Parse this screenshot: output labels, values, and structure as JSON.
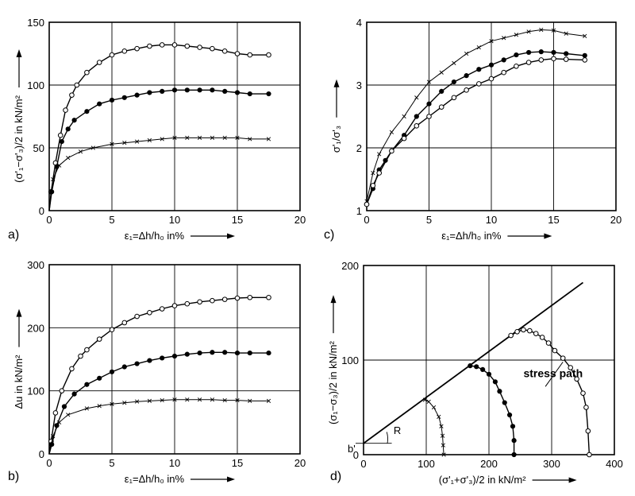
{
  "chart_data": [
    {
      "panel": "a",
      "type": "line",
      "xlabel": "ε₁=Δh/h₀ in%",
      "ylabel": "(σ'₁−σ'₃)/2 in kN/m²",
      "xlim": [
        0,
        20
      ],
      "ylim": [
        0,
        150
      ],
      "xticks": [
        0,
        5,
        10,
        15,
        20
      ],
      "yticks": [
        0,
        50,
        100,
        150
      ],
      "grid": true,
      "series": [
        {
          "marker": "open-circle",
          "points": [
            [
              0,
              0
            ],
            [
              0.15,
              15
            ],
            [
              0.5,
              38
            ],
            [
              0.9,
              60
            ],
            [
              1.3,
              80
            ],
            [
              1.8,
              92
            ],
            [
              2.2,
              100
            ],
            [
              3,
              110
            ],
            [
              4,
              118
            ],
            [
              5,
              124
            ],
            [
              6,
              127
            ],
            [
              7,
              129
            ],
            [
              8,
              131
            ],
            [
              9,
              132
            ],
            [
              10,
              132
            ],
            [
              11,
              131
            ],
            [
              12,
              130
            ],
            [
              13,
              129
            ],
            [
              14,
              127
            ],
            [
              15,
              125
            ],
            [
              16,
              124
            ],
            [
              17.5,
              124
            ]
          ]
        },
        {
          "marker": "filled-circle",
          "points": [
            [
              0,
              0
            ],
            [
              0.2,
              15
            ],
            [
              0.6,
              35
            ],
            [
              1,
              55
            ],
            [
              1.5,
              65
            ],
            [
              2,
              72
            ],
            [
              3,
              79
            ],
            [
              4,
              85
            ],
            [
              5,
              88
            ],
            [
              6,
              90
            ],
            [
              7,
              92
            ],
            [
              8,
              94
            ],
            [
              9,
              95
            ],
            [
              10,
              96
            ],
            [
              11,
              96
            ],
            [
              12,
              96
            ],
            [
              13,
              96
            ],
            [
              14,
              95
            ],
            [
              15,
              94
            ],
            [
              16,
              93
            ],
            [
              17.5,
              93
            ]
          ]
        },
        {
          "marker": "cross",
          "points": [
            [
              0,
              0
            ],
            [
              0.3,
              25
            ],
            [
              0.8,
              36
            ],
            [
              1.5,
              42
            ],
            [
              2.5,
              47
            ],
            [
              3.5,
              50
            ],
            [
              5,
              53
            ],
            [
              6,
              54
            ],
            [
              7,
              55
            ],
            [
              8,
              56
            ],
            [
              9,
              57
            ],
            [
              10,
              58
            ],
            [
              11,
              58
            ],
            [
              12,
              58
            ],
            [
              13,
              58
            ],
            [
              14,
              58
            ],
            [
              15,
              58
            ],
            [
              16,
              57
            ],
            [
              17.5,
              57
            ]
          ]
        }
      ]
    },
    {
      "panel": "b",
      "type": "line",
      "xlabel": "ε₁=Δh/h₀ in%",
      "ylabel": "Δu in kN/m²",
      "xlim": [
        0,
        20
      ],
      "ylim": [
        0,
        300
      ],
      "xticks": [
        0,
        5,
        10,
        15,
        20
      ],
      "yticks": [
        0,
        100,
        200,
        300
      ],
      "grid": true,
      "series": [
        {
          "marker": "open-circle",
          "points": [
            [
              0,
              0
            ],
            [
              0.15,
              20
            ],
            [
              0.5,
              65
            ],
            [
              1,
              100
            ],
            [
              1.8,
              135
            ],
            [
              2.5,
              155
            ],
            [
              3,
              165
            ],
            [
              4,
              182
            ],
            [
              5,
              197
            ],
            [
              6,
              208
            ],
            [
              7,
              218
            ],
            [
              8,
              224
            ],
            [
              9,
              230
            ],
            [
              10,
              235
            ],
            [
              11,
              238
            ],
            [
              12,
              241
            ],
            [
              13,
              243
            ],
            [
              14,
              245
            ],
            [
              15,
              247
            ],
            [
              16,
              248
            ],
            [
              17.5,
              248
            ]
          ]
        },
        {
          "marker": "filled-circle",
          "points": [
            [
              0,
              0
            ],
            [
              0.2,
              15
            ],
            [
              0.6,
              45
            ],
            [
              1.2,
              75
            ],
            [
              2,
              95
            ],
            [
              3,
              110
            ],
            [
              4,
              120
            ],
            [
              5,
              130
            ],
            [
              6,
              138
            ],
            [
              7,
              143
            ],
            [
              8,
              148
            ],
            [
              9,
              152
            ],
            [
              10,
              155
            ],
            [
              11,
              158
            ],
            [
              12,
              160
            ],
            [
              13,
              161
            ],
            [
              14,
              161
            ],
            [
              15,
              160
            ],
            [
              16,
              160
            ],
            [
              17.5,
              160
            ]
          ]
        },
        {
          "marker": "cross",
          "points": [
            [
              0,
              0
            ],
            [
              0.3,
              28
            ],
            [
              0.8,
              50
            ],
            [
              1.5,
              62
            ],
            [
              3,
              72
            ],
            [
              4,
              76
            ],
            [
              5,
              79
            ],
            [
              6,
              81
            ],
            [
              7,
              83
            ],
            [
              8,
              84
            ],
            [
              9,
              85
            ],
            [
              10,
              86
            ],
            [
              11,
              86
            ],
            [
              12,
              86
            ],
            [
              13,
              86
            ],
            [
              14,
              85
            ],
            [
              15,
              85
            ],
            [
              16,
              84
            ],
            [
              17.5,
              84
            ]
          ]
        }
      ]
    },
    {
      "panel": "c",
      "type": "line",
      "xlabel": "ε₁=Δh/h₀ in%",
      "ylabel": "σ'₁/σ'₃",
      "xlim": [
        0,
        20
      ],
      "ylim": [
        1,
        4
      ],
      "xticks": [
        0,
        5,
        10,
        15,
        20
      ],
      "yticks": [
        1,
        2,
        3,
        4
      ],
      "grid": true,
      "series": [
        {
          "marker": "cross",
          "points": [
            [
              0,
              1.15
            ],
            [
              0.5,
              1.6
            ],
            [
              1,
              1.9
            ],
            [
              2,
              2.25
            ],
            [
              3,
              2.5
            ],
            [
              4,
              2.8
            ],
            [
              5,
              3.05
            ],
            [
              6,
              3.2
            ],
            [
              7,
              3.35
            ],
            [
              8,
              3.5
            ],
            [
              9,
              3.6
            ],
            [
              10,
              3.7
            ],
            [
              11,
              3.75
            ],
            [
              12,
              3.8
            ],
            [
              13,
              3.85
            ],
            [
              14,
              3.88
            ],
            [
              15,
              3.87
            ],
            [
              16,
              3.82
            ],
            [
              17.5,
              3.78
            ]
          ]
        },
        {
          "marker": "filled-circle",
          "points": [
            [
              0,
              1.1
            ],
            [
              0.5,
              1.35
            ],
            [
              1,
              1.65
            ],
            [
              1.5,
              1.8
            ],
            [
              2,
              1.95
            ],
            [
              3,
              2.2
            ],
            [
              4,
              2.5
            ],
            [
              5,
              2.7
            ],
            [
              6,
              2.9
            ],
            [
              7,
              3.05
            ],
            [
              8,
              3.15
            ],
            [
              9,
              3.25
            ],
            [
              10,
              3.32
            ],
            [
              11,
              3.4
            ],
            [
              12,
              3.48
            ],
            [
              13,
              3.52
            ],
            [
              14,
              3.53
            ],
            [
              15,
              3.52
            ],
            [
              16,
              3.5
            ],
            [
              17.5,
              3.47
            ]
          ]
        },
        {
          "marker": "open-circle",
          "points": [
            [
              0,
              1.1
            ],
            [
              0.5,
              1.4
            ],
            [
              1,
              1.6
            ],
            [
              2,
              1.95
            ],
            [
              3,
              2.15
            ],
            [
              4,
              2.35
            ],
            [
              5,
              2.5
            ],
            [
              6,
              2.65
            ],
            [
              7,
              2.8
            ],
            [
              8,
              2.92
            ],
            [
              9,
              3.02
            ],
            [
              10,
              3.1
            ],
            [
              11,
              3.2
            ],
            [
              12,
              3.3
            ],
            [
              13,
              3.36
            ],
            [
              14,
              3.4
            ],
            [
              15,
              3.42
            ],
            [
              16,
              3.41
            ],
            [
              17.5,
              3.4
            ]
          ]
        }
      ]
    },
    {
      "panel": "d",
      "type": "line",
      "xlabel": "(σ'₁+σ'₃)/2 in kN/m²",
      "ylabel": "(σ₁−σ₃)/2 in kN/m²",
      "xlim": [
        0,
        400
      ],
      "ylim": [
        0,
        200
      ],
      "xticks": [
        0,
        100,
        200,
        300,
        400
      ],
      "yticks": [
        0,
        100,
        200
      ],
      "grid": true,
      "annotations": [
        "stress path",
        "b'",
        "R"
      ],
      "failure_line": [
        [
          0,
          12
        ],
        [
          350,
          182
        ]
      ],
      "series": [
        {
          "marker": "open-circle",
          "points": [
            [
              360,
              0
            ],
            [
              358,
              25
            ],
            [
              355,
              50
            ],
            [
              350,
              65
            ],
            [
              340,
              80
            ],
            [
              330,
              92
            ],
            [
              318,
              102
            ],
            [
              305,
              110
            ],
            [
              295,
              118
            ],
            [
              285,
              124
            ],
            [
              275,
              128
            ],
            [
              265,
              131
            ],
            [
              255,
              132
            ],
            [
              245,
              130
            ],
            [
              235,
              126
            ]
          ]
        },
        {
          "marker": "filled-circle",
          "points": [
            [
              240,
              0
            ],
            [
              240,
              15
            ],
            [
              238,
              30
            ],
            [
              233,
              42
            ],
            [
              225,
              55
            ],
            [
              217,
              67
            ],
            [
              210,
              77
            ],
            [
              200,
              85
            ],
            [
              190,
              90
            ],
            [
              180,
              93
            ],
            [
              170,
              94
            ]
          ]
        },
        {
          "marker": "cross",
          "points": [
            [
              128,
              0
            ],
            [
              127,
              10
            ],
            [
              126,
              20
            ],
            [
              124,
              30
            ],
            [
              120,
              40
            ],
            [
              112,
              50
            ],
            [
              104,
              56
            ],
            [
              98,
              58
            ]
          ]
        }
      ]
    }
  ],
  "panels": {
    "a": {
      "label": "a)"
    },
    "b": {
      "label": "b)"
    },
    "c": {
      "label": "c)"
    },
    "d": {
      "label": "d)"
    }
  }
}
